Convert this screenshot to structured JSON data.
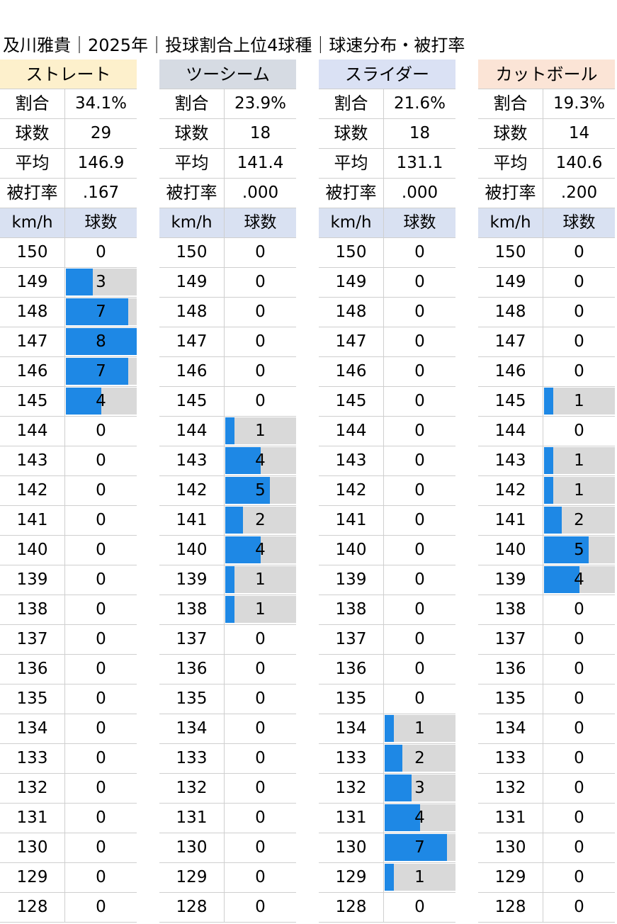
{
  "title": "及川雅貴｜2025年｜投球割合上位4球種｜球速分布・被打率",
  "colors": {
    "bar": "#1e88e5",
    "bar_background": "#d9d9d9",
    "header": "#d9e1f2"
  },
  "stat_labels": {
    "ratio": "割合",
    "count": "球数",
    "avg": "平均",
    "baa": "被打率"
  },
  "table_header": {
    "speed": "km/h",
    "count": "球数"
  },
  "chart_data": {
    "type": "bar",
    "orientation": "horizontal",
    "categories": [
      150,
      149,
      148,
      147,
      146,
      145,
      144,
      143,
      142,
      141,
      140,
      139,
      138,
      137,
      136,
      135,
      134,
      133,
      132,
      131,
      130,
      129,
      128
    ],
    "xlim": [
      0,
      8
    ],
    "series": [
      {
        "name": "ストレート",
        "header_color": "#fdf0cc",
        "ratio": "34.1%",
        "count": "29",
        "avg": "146.9",
        "baa": ".167",
        "values": [
          0,
          3,
          7,
          8,
          7,
          4,
          0,
          0,
          0,
          0,
          0,
          0,
          0,
          0,
          0,
          0,
          0,
          0,
          0,
          0,
          0,
          0,
          0
        ]
      },
      {
        "name": "ツーシーム",
        "header_color": "#d6dbe3",
        "ratio": "23.9%",
        "count": "18",
        "avg": "141.4",
        "baa": ".000",
        "values": [
          0,
          0,
          0,
          0,
          0,
          0,
          1,
          4,
          5,
          2,
          4,
          1,
          1,
          0,
          0,
          0,
          0,
          0,
          0,
          0,
          0,
          0,
          0
        ]
      },
      {
        "name": "スライダー",
        "header_color": "#dae1f4",
        "ratio": "21.6%",
        "count": "18",
        "avg": "131.1",
        "baa": ".000",
        "values": [
          0,
          0,
          0,
          0,
          0,
          0,
          0,
          0,
          0,
          0,
          0,
          0,
          0,
          0,
          0,
          0,
          1,
          2,
          3,
          4,
          7,
          1,
          0
        ]
      },
      {
        "name": "カットボール",
        "header_color": "#fbe4d6",
        "ratio": "19.3%",
        "count": "14",
        "avg": "140.6",
        "baa": ".200",
        "values": [
          0,
          0,
          0,
          0,
          0,
          1,
          0,
          1,
          1,
          2,
          5,
          4,
          0,
          0,
          0,
          0,
          0,
          0,
          0,
          0,
          0,
          0,
          0
        ]
      }
    ]
  }
}
